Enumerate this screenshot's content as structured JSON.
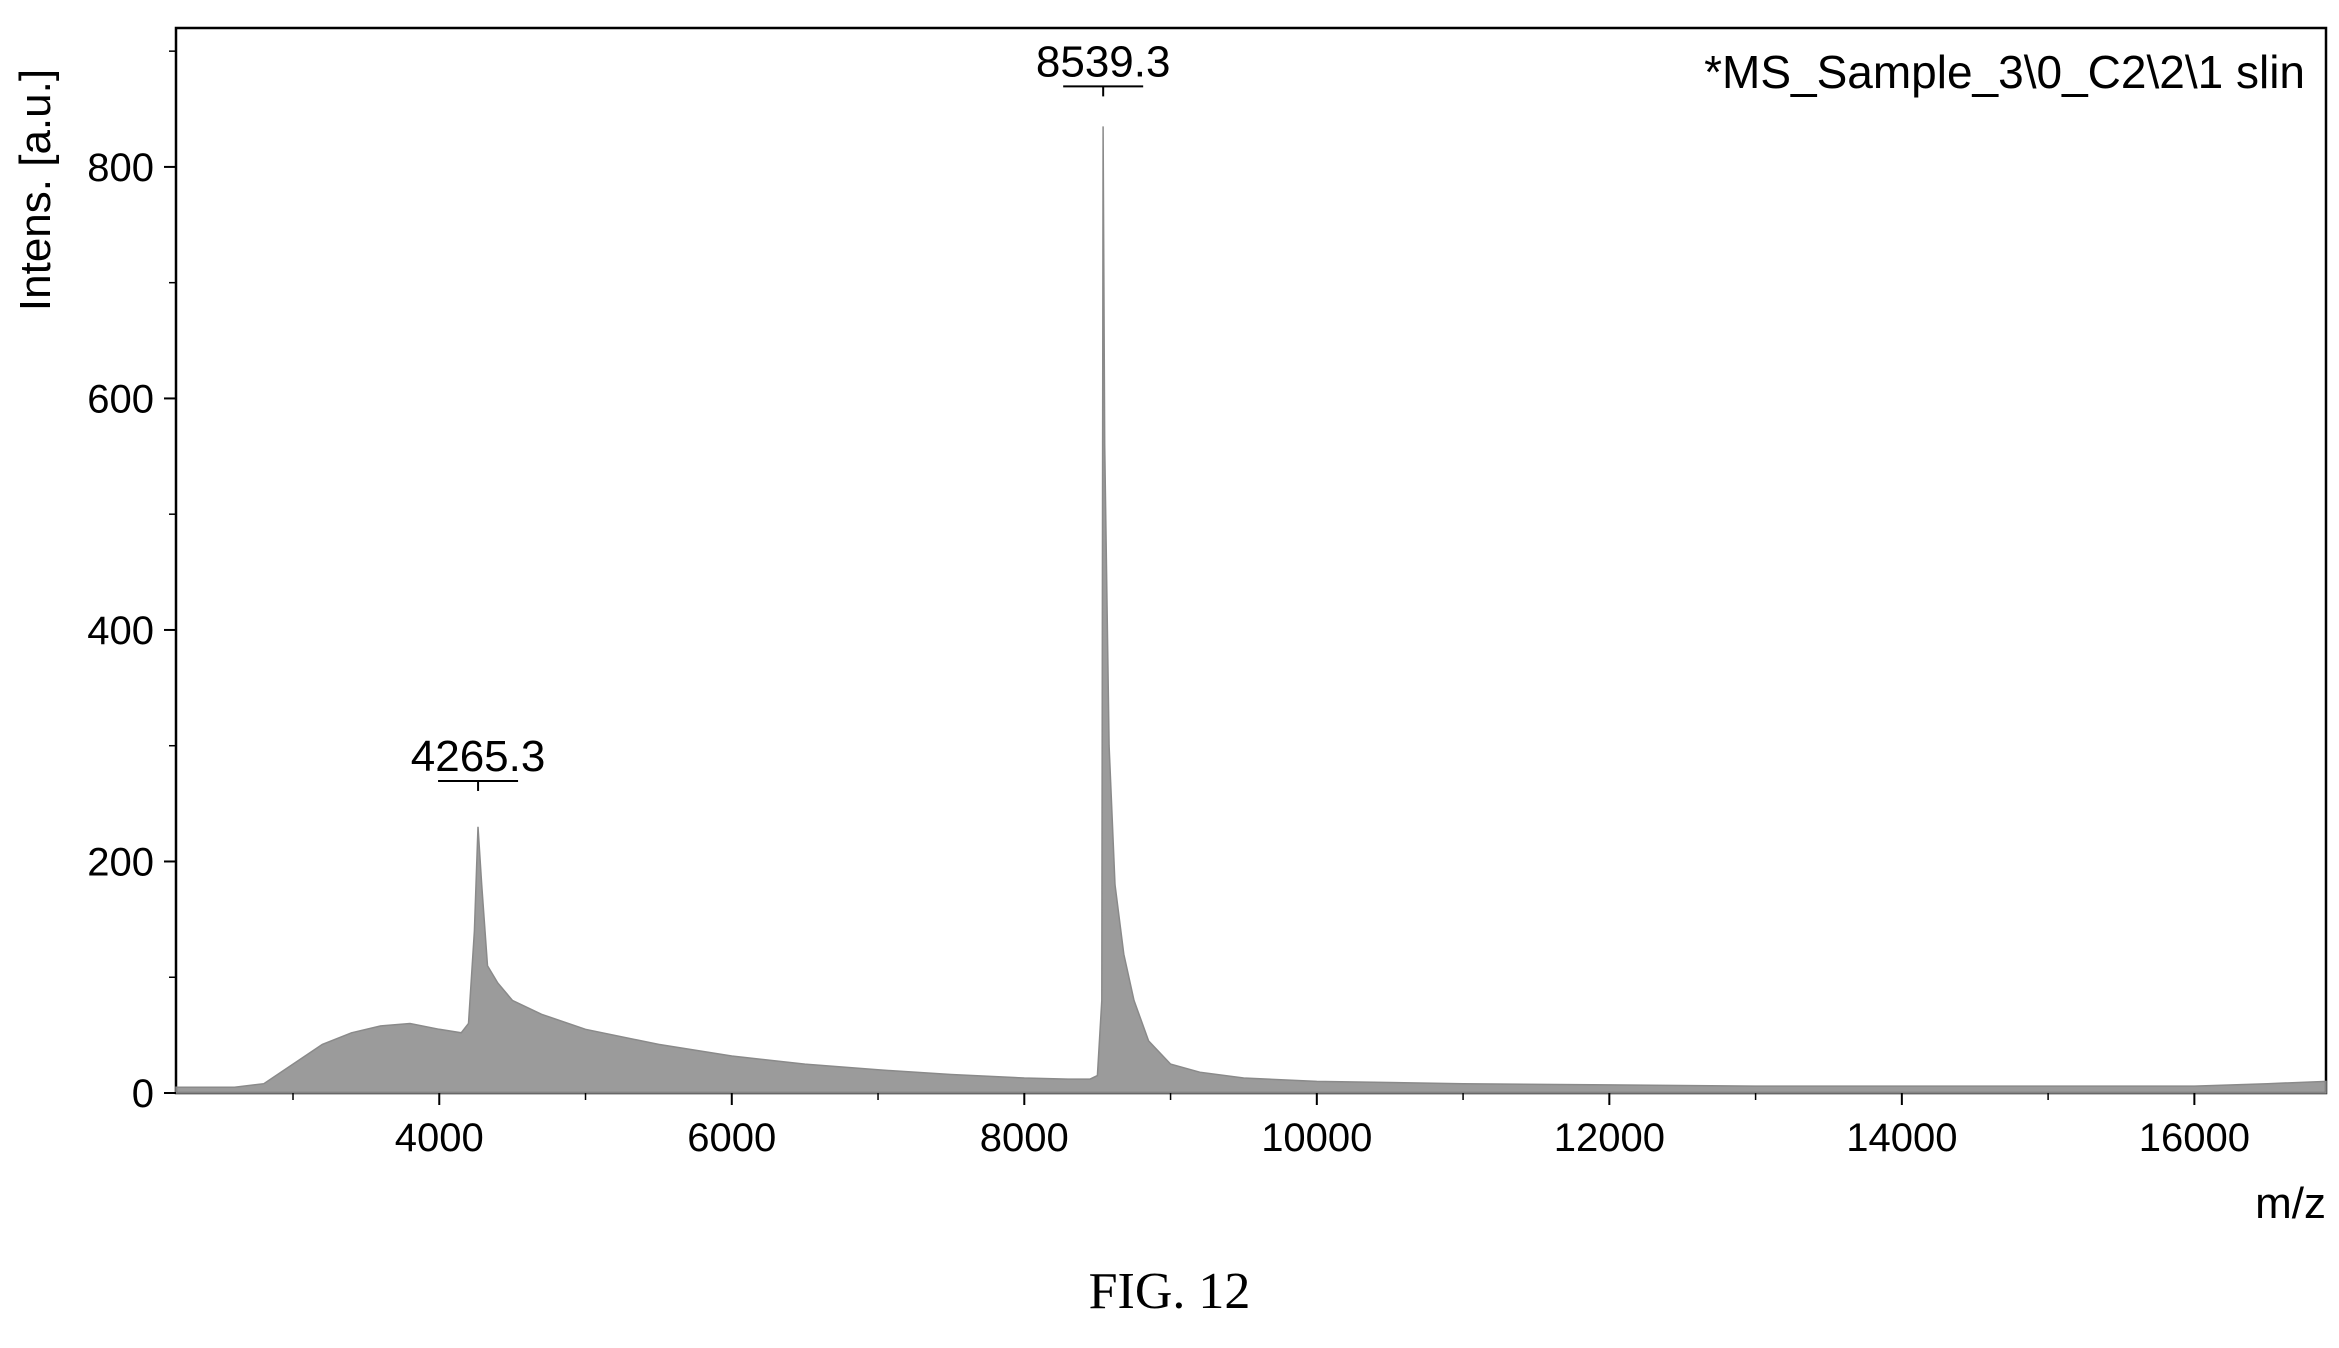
{
  "figure": {
    "caption": "FIG. 12",
    "sample_label": "*MS_Sample_3\\0_C2\\2\\1 slin"
  },
  "chart_data": {
    "type": "line",
    "title": "",
    "xlabel": "m/z",
    "ylabel": "Intens. [a.u.]",
    "xlim": [
      2200,
      16900
    ],
    "ylim": [
      0,
      920
    ],
    "x_ticks": [
      4000,
      6000,
      8000,
      10000,
      12000,
      14000,
      16000
    ],
    "x_tick_labels": [
      "4000",
      "6000",
      "8000",
      "10000",
      "12000",
      "14000",
      "16000"
    ],
    "y_ticks": [
      0,
      200,
      400,
      600,
      800
    ],
    "y_tick_labels": [
      "0",
      "200",
      "400",
      "600",
      "800"
    ],
    "series_color": "#8a8a8a",
    "grid": false,
    "peaks": [
      {
        "label": "4265.3",
        "x": 4265.3,
        "y": 235
      },
      {
        "label": "8539.3",
        "x": 8539.3,
        "y": 835
      }
    ],
    "series": [
      {
        "x": [
          2200,
          2600,
          2800,
          3000,
          3200,
          3400,
          3600,
          3800,
          4000,
          4150,
          4200,
          4240,
          4265,
          4290,
          4330,
          4400,
          4500,
          4700,
          5000,
          5500,
          6000,
          6500,
          7000,
          7500,
          8000,
          8300,
          8450,
          8500,
          8530,
          8539,
          8550,
          8580,
          8620,
          8680,
          8750,
          8850,
          9000,
          9200,
          9500,
          10000,
          11000,
          12000,
          13000,
          14000,
          15000,
          16000,
          16500,
          16900
        ],
        "y": [
          5,
          5,
          8,
          25,
          42,
          52,
          58,
          60,
          55,
          52,
          60,
          140,
          230,
          180,
          110,
          95,
          80,
          68,
          55,
          42,
          32,
          25,
          20,
          16,
          13,
          12,
          12,
          15,
          80,
          835,
          560,
          300,
          180,
          120,
          80,
          45,
          25,
          18,
          13,
          10,
          8,
          7,
          6,
          6,
          6,
          6,
          8,
          10
        ]
      }
    ]
  }
}
